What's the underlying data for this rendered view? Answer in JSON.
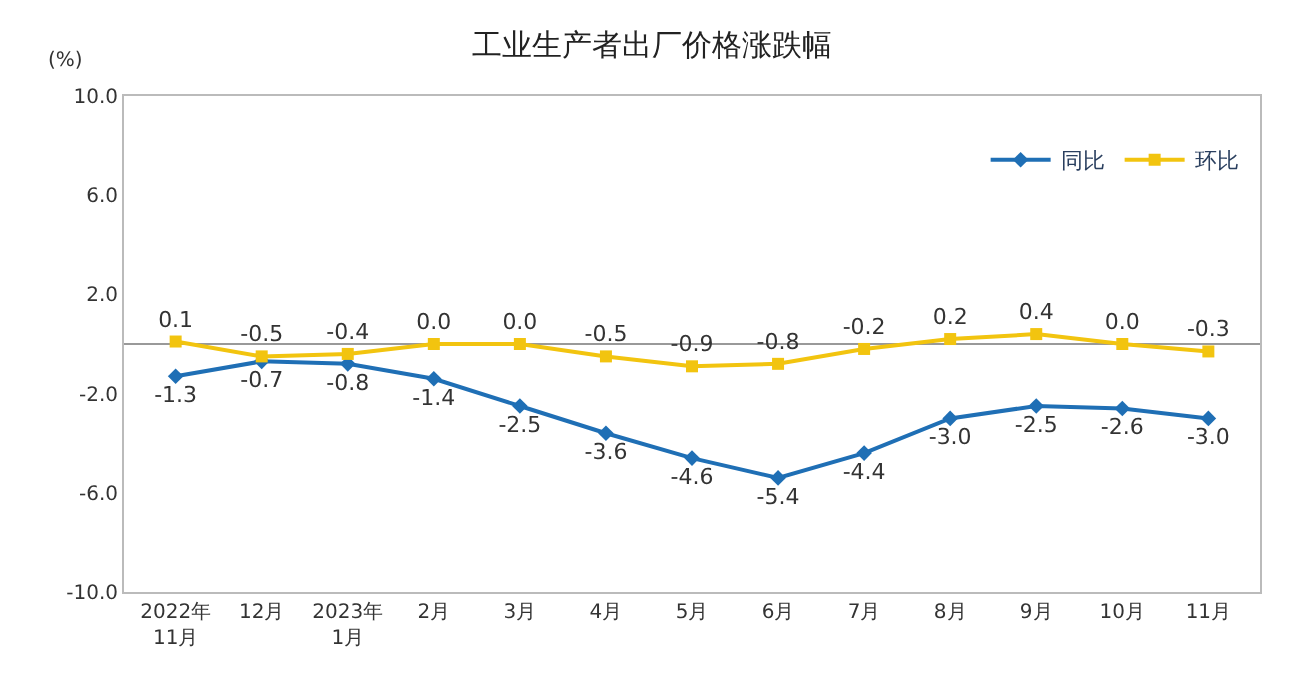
{
  "chart_data": {
    "type": "line",
    "title": "工业生产者出厂价格涨跌幅",
    "ylabel": "(%)",
    "categories": [
      "2022年\n11月",
      "12月",
      "2023年\n1月",
      "2月",
      "3月",
      "4月",
      "5月",
      "6月",
      "7月",
      "8月",
      "9月",
      "10月",
      "11月"
    ],
    "series": [
      {
        "name": "同比",
        "color": "#1f6fb5",
        "marker": "diamond",
        "values": [
          -1.3,
          -0.7,
          -0.8,
          -1.4,
          -2.5,
          -3.6,
          -4.6,
          -5.4,
          -4.4,
          -3.0,
          -2.5,
          -2.6,
          -3.0
        ],
        "value_labels": [
          "-1.3",
          "-0.7",
          "-0.8",
          "-1.4",
          "-2.5",
          "-3.6",
          "-4.6",
          "-5.4",
          "-4.4",
          "-3.0",
          "-2.5",
          "-2.6",
          "-3.0"
        ]
      },
      {
        "name": "环比",
        "color": "#f2c40f",
        "marker": "square",
        "values": [
          0.1,
          -0.5,
          -0.4,
          0.0,
          0.0,
          -0.5,
          -0.9,
          -0.8,
          -0.2,
          0.2,
          0.4,
          0.0,
          -0.3
        ],
        "value_labels": [
          "0.1",
          "-0.5",
          "-0.4",
          "0.0",
          "0.0",
          "-0.5",
          "-0.9",
          "-0.8",
          "-0.2",
          "0.2",
          "0.4",
          "0.0",
          "-0.3"
        ]
      }
    ],
    "ylim": [
      -10,
      10
    ],
    "yticks": [
      {
        "value": 10,
        "label": "10.0"
      },
      {
        "value": 6,
        "label": "6.0"
      },
      {
        "value": 2,
        "label": "2.0"
      },
      {
        "value": -2,
        "label": "-2.0"
      },
      {
        "value": -6,
        "label": "-6.0"
      },
      {
        "value": -10,
        "label": "-10.0"
      }
    ],
    "legend": "top right",
    "line_style": "solid"
  }
}
